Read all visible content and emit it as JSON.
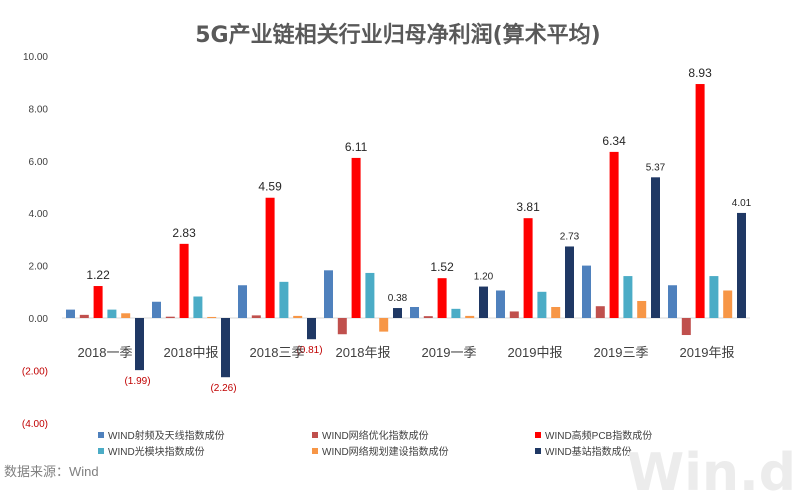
{
  "chart_data": {
    "type": "bar",
    "title": "5G产业链相关行业归母净利润(算术平均)",
    "categories": [
      "2018一季",
      "2018中报",
      "2018三季",
      "2018年报",
      "2019一季",
      "2019中报",
      "2019三季",
      "2019年报"
    ],
    "ylim": [
      -4,
      10
    ],
    "yticks": [
      10,
      8,
      6,
      4,
      2,
      0,
      -2,
      -4
    ],
    "ytick_labels": [
      "10.00",
      "8.00",
      "6.00",
      "4.00",
      "2.00",
      "0.00",
      "(2.00)",
      "(4.00)"
    ],
    "series": [
      {
        "name": "WIND射频及天线指数成份",
        "color": "#4f81bd",
        "values": [
          0.32,
          0.62,
          1.25,
          1.82,
          0.42,
          1.05,
          2.0,
          1.25
        ]
      },
      {
        "name": "WIND网络优化指数成份",
        "color": "#c0504d",
        "values": [
          0.12,
          0.05,
          0.1,
          -0.62,
          0.07,
          0.25,
          0.45,
          -0.65
        ]
      },
      {
        "name": "WIND高频PCB指数成份",
        "color": "#ff0000",
        "values": [
          1.22,
          2.83,
          4.59,
          6.11,
          1.52,
          3.81,
          6.34,
          8.93
        ]
      },
      {
        "name": "WIND光模块指数成份",
        "color": "#4bacc6",
        "values": [
          0.32,
          0.82,
          1.38,
          1.72,
          0.35,
          1.0,
          1.6,
          1.6
        ]
      },
      {
        "name": "WIND网络规划建设指数成份",
        "color": "#f79646",
        "values": [
          0.18,
          0.04,
          0.08,
          -0.52,
          0.08,
          0.42,
          0.65,
          1.05
        ]
      },
      {
        "name": "WIND基站指数成份",
        "color": "#1f3864",
        "values": [
          -1.99,
          -2.26,
          -0.81,
          0.38,
          1.2,
          2.73,
          5.37,
          4.01
        ]
      }
    ],
    "data_labels": {
      "pcb": [
        "1.22",
        "2.83",
        "4.59",
        "6.11",
        "1.52",
        "3.81",
        "6.34",
        "8.93"
      ],
      "base_station": [
        "(1.99)",
        "(2.26)",
        "(0.81)",
        "0.38",
        "1.20",
        "2.73",
        "5.37",
        "4.01"
      ]
    }
  },
  "source": "数据来源：Wind",
  "watermark": "Win.d"
}
